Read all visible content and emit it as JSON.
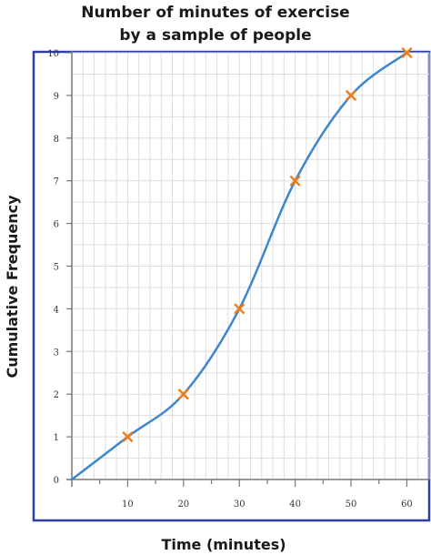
{
  "chart_data": {
    "type": "line",
    "title_lines": [
      "Number of minutes of exercise",
      "by a sample of people"
    ],
    "xlabel": "Time (minutes)",
    "ylabel": "Cumulative Frequency",
    "xlim": [
      0,
      64
    ],
    "ylim": [
      0,
      10
    ],
    "x_ticks": [
      10,
      20,
      30,
      40,
      50,
      60
    ],
    "y_ticks": [
      0,
      1,
      2,
      3,
      4,
      5,
      6,
      7,
      8,
      9,
      10
    ],
    "grid": true,
    "grid_minor_x_step": 2,
    "grid_minor_y_step": 0.5,
    "series": [
      {
        "curve": true,
        "color": "#3b86cc",
        "marker": "x",
        "marker_color": "#f07d1a",
        "x": [
          0,
          10,
          20,
          30,
          40,
          50,
          60
        ],
        "y": [
          0,
          1,
          2,
          4,
          7,
          9,
          10
        ],
        "marked_points": [
          1,
          2,
          3,
          4,
          5,
          6
        ]
      }
    ],
    "frame_color": "#2a3fa0"
  }
}
